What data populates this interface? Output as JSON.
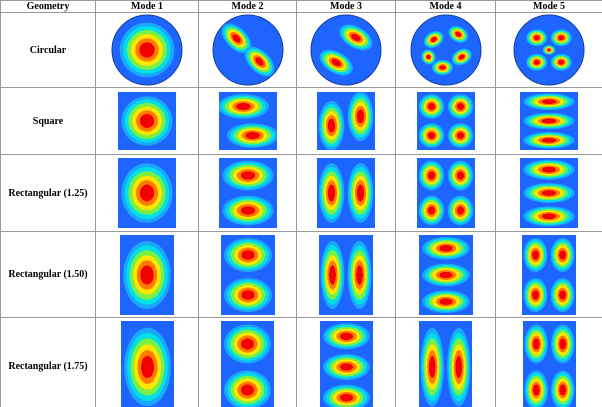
{
  "table": {
    "header": [
      "Geometry",
      "Mode 1",
      "Mode 2",
      "Mode 3",
      "Mode 4",
      "Mode 5"
    ],
    "rows": [
      "Circular",
      "Square",
      "Rectangular (1.25)",
      "Rectangular (1.50)",
      "Rectangular (1.75)"
    ]
  }
}
